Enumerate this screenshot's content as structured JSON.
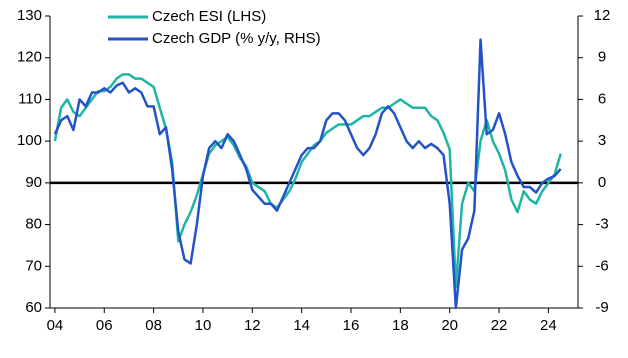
{
  "chart_data": {
    "type": "line",
    "x": [
      2004,
      2004.25,
      2004.5,
      2004.75,
      2005,
      2005.25,
      2005.5,
      2005.75,
      2006,
      2006.25,
      2006.5,
      2006.75,
      2007,
      2007.25,
      2007.5,
      2007.75,
      2008,
      2008.25,
      2008.5,
      2008.75,
      2009,
      2009.25,
      2009.5,
      2009.75,
      2010,
      2010.25,
      2010.5,
      2010.75,
      2011,
      2011.25,
      2011.5,
      2011.75,
      2012,
      2012.25,
      2012.5,
      2012.75,
      2013,
      2013.25,
      2013.5,
      2013.75,
      2014,
      2014.25,
      2014.5,
      2014.75,
      2015,
      2015.25,
      2015.5,
      2015.75,
      2016,
      2016.25,
      2016.5,
      2016.75,
      2017,
      2017.25,
      2017.5,
      2017.75,
      2018,
      2018.25,
      2018.5,
      2018.75,
      2019,
      2019.25,
      2019.5,
      2019.75,
      2020,
      2020.25,
      2020.5,
      2020.75,
      2021,
      2021.25,
      2021.5,
      2021.75,
      2022,
      2022.25,
      2022.5,
      2022.75,
      2023,
      2023.25,
      2023.5,
      2023.75,
      2024,
      2024.25,
      2024.5
    ],
    "series": [
      {
        "name": "Czech ESI (LHS)",
        "color": "#1fb5a5",
        "axis": "y",
        "values": [
          100,
          108,
          110,
          107,
          106,
          108,
          110,
          112,
          112,
          113,
          115,
          116,
          116,
          115,
          115,
          114,
          113,
          108,
          103,
          95,
          76,
          80,
          83,
          87,
          92,
          97,
          99,
          100,
          101,
          99,
          96,
          94,
          90,
          89,
          88,
          85,
          84,
          86,
          88,
          91,
          95,
          97,
          99,
          100,
          102,
          103,
          104,
          104,
          104,
          105,
          106,
          106,
          107,
          108,
          108,
          109,
          110,
          109,
          108,
          108,
          108,
          106,
          105,
          102,
          98,
          65,
          85,
          90,
          88,
          100,
          105,
          100,
          97,
          93,
          86,
          83,
          88,
          86,
          85,
          88,
          90,
          92,
          97
        ]
      },
      {
        "name": "Czech GDP (% y/y, RHS)",
        "color": "#2453c7",
        "axis": "y2",
        "values": [
          3.5,
          4.5,
          4.8,
          3.8,
          6,
          5.5,
          6.5,
          6.5,
          6.8,
          6.5,
          7,
          7.2,
          6.5,
          6.8,
          6.5,
          5.5,
          5.5,
          3.5,
          4,
          1,
          -3.5,
          -5.5,
          -5.8,
          -3,
          0.5,
          2.5,
          3,
          2.5,
          3.5,
          3,
          2,
          1,
          -0.5,
          -1,
          -1.5,
          -1.5,
          -2,
          -1,
          0,
          1,
          2,
          2.5,
          2.5,
          3,
          4.5,
          5,
          5,
          4.5,
          3.5,
          2.5,
          2,
          2.5,
          3.5,
          5,
          5.5,
          5,
          4,
          3,
          2.5,
          3,
          2.5,
          2.8,
          2.5,
          2,
          -1.5,
          -9,
          -4.8,
          -4,
          -2,
          10.3,
          3.5,
          3.8,
          5,
          3.5,
          1.5,
          0.5,
          -0.3,
          -0.3,
          -0.7,
          0,
          0.3,
          0.5,
          1
        ]
      }
    ],
    "xlim": [
      2003.8,
      2025.2
    ],
    "xticks": [
      {
        "value": 2004,
        "label": "04"
      },
      {
        "value": 2006,
        "label": "06"
      },
      {
        "value": 2008,
        "label": "08"
      },
      {
        "value": 2010,
        "label": "10"
      },
      {
        "value": 2012,
        "label": "12"
      },
      {
        "value": 2014,
        "label": "14"
      },
      {
        "value": 2016,
        "label": "16"
      },
      {
        "value": 2018,
        "label": "18"
      },
      {
        "value": 2020,
        "label": "20"
      },
      {
        "value": 2022,
        "label": "22"
      },
      {
        "value": 2024,
        "label": "24"
      }
    ],
    "ylim": [
      60,
      130
    ],
    "yticks": [
      60,
      70,
      80,
      90,
      100,
      110,
      120,
      130
    ],
    "y2lim": [
      -9,
      12
    ],
    "y2ticks": [
      -9,
      -6,
      -3,
      0,
      3,
      6,
      9,
      12
    ],
    "hline": 90,
    "legend": "top-left"
  }
}
